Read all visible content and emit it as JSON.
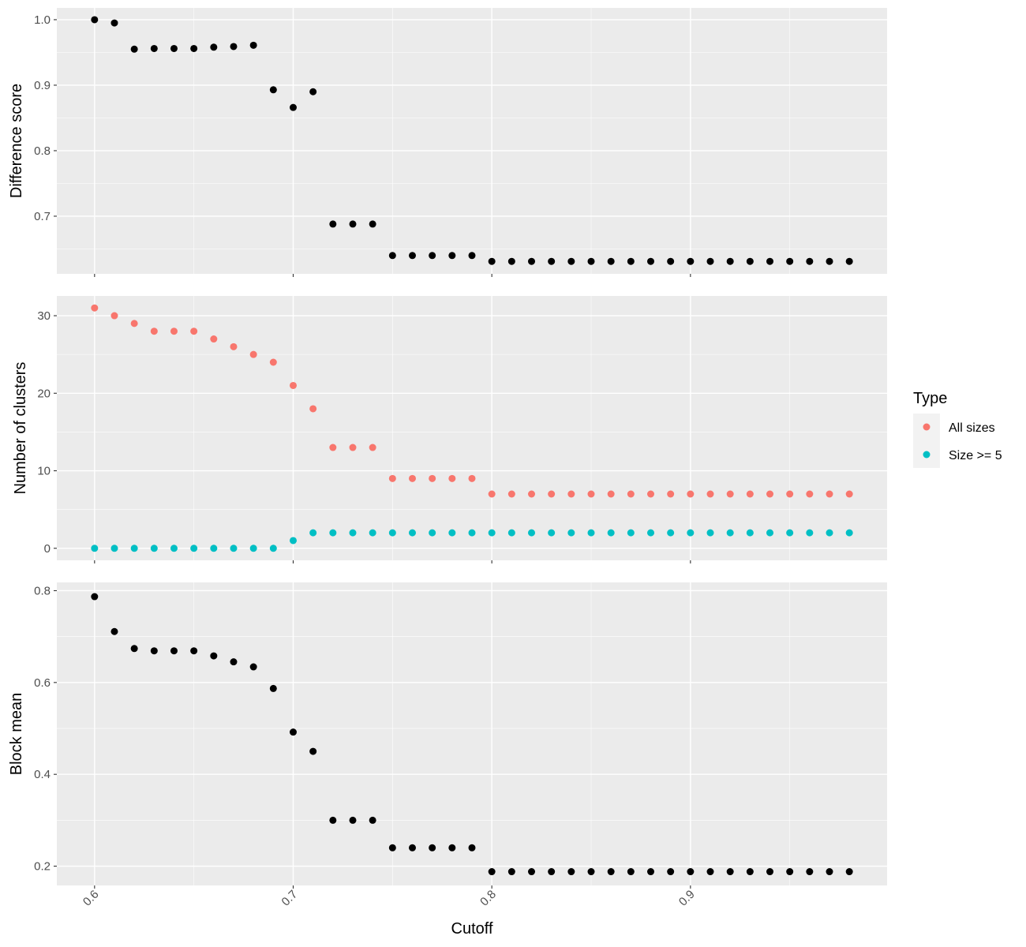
{
  "chart_data": [
    {
      "type": "scatter",
      "ylabel": "Difference score",
      "ylim": [
        0.612,
        1.018
      ],
      "yticks": [
        0.7,
        0.8,
        0.9,
        1.0
      ],
      "ytick_labels": [
        "0.7",
        "0.8",
        "0.9",
        "1.0"
      ],
      "series": [
        {
          "x": [
            0.6,
            0.61,
            0.62,
            0.63,
            0.64,
            0.65,
            0.66,
            0.67,
            0.68,
            0.69,
            0.7,
            0.71,
            0.72,
            0.73,
            0.74,
            0.75,
            0.76,
            0.77,
            0.78,
            0.79,
            0.8,
            0.81,
            0.82,
            0.83,
            0.84,
            0.85,
            0.86,
            0.87,
            0.88,
            0.89,
            0.9,
            0.91,
            0.92,
            0.93,
            0.94,
            0.95,
            0.96,
            0.97,
            0.98
          ],
          "values": [
            1.0,
            0.995,
            0.955,
            0.956,
            0.956,
            0.956,
            0.958,
            0.959,
            0.961,
            0.893,
            0.866,
            0.89,
            0.688,
            0.688,
            0.688,
            0.64,
            0.64,
            0.64,
            0.64,
            0.64,
            0.631,
            0.631,
            0.631,
            0.631,
            0.631,
            0.631,
            0.631,
            0.631,
            0.631,
            0.631,
            0.631,
            0.631,
            0.631,
            0.631,
            0.631,
            0.631,
            0.631,
            0.631,
            0.631
          ]
        }
      ]
    },
    {
      "type": "scatter",
      "ylabel": "Number of clusters",
      "ylim": [
        -1.55,
        32.55
      ],
      "yticks": [
        0,
        10,
        20,
        30
      ],
      "ytick_labels": [
        "0",
        "10",
        "20",
        "30"
      ],
      "legend_title": "Type",
      "legend_position": "right",
      "series": [
        {
          "name": "All sizes",
          "color": "#F8766D",
          "x": [
            0.6,
            0.61,
            0.62,
            0.63,
            0.64,
            0.65,
            0.66,
            0.67,
            0.68,
            0.69,
            0.7,
            0.71,
            0.72,
            0.73,
            0.74,
            0.75,
            0.76,
            0.77,
            0.78,
            0.79,
            0.8,
            0.81,
            0.82,
            0.83,
            0.84,
            0.85,
            0.86,
            0.87,
            0.88,
            0.89,
            0.9,
            0.91,
            0.92,
            0.93,
            0.94,
            0.95,
            0.96,
            0.97,
            0.98
          ],
          "values": [
            31,
            30,
            29,
            28,
            28,
            28,
            27,
            26,
            25,
            24,
            21,
            18,
            13,
            13,
            13,
            9,
            9,
            9,
            9,
            9,
            7,
            7,
            7,
            7,
            7,
            7,
            7,
            7,
            7,
            7,
            7,
            7,
            7,
            7,
            7,
            7,
            7,
            7,
            7
          ]
        },
        {
          "name": "Size >= 5",
          "color": "#00BFC4",
          "x": [
            0.6,
            0.61,
            0.62,
            0.63,
            0.64,
            0.65,
            0.66,
            0.67,
            0.68,
            0.69,
            0.7,
            0.71,
            0.72,
            0.73,
            0.74,
            0.75,
            0.76,
            0.77,
            0.78,
            0.79,
            0.8,
            0.81,
            0.82,
            0.83,
            0.84,
            0.85,
            0.86,
            0.87,
            0.88,
            0.89,
            0.9,
            0.91,
            0.92,
            0.93,
            0.94,
            0.95,
            0.96,
            0.97,
            0.98
          ],
          "values": [
            0,
            0,
            0,
            0,
            0,
            0,
            0,
            0,
            0,
            0,
            1,
            2,
            2,
            2,
            2,
            2,
            2,
            2,
            2,
            2,
            2,
            2,
            2,
            2,
            2,
            2,
            2,
            2,
            2,
            2,
            2,
            2,
            2,
            2,
            2,
            2,
            2,
            2,
            2
          ]
        }
      ]
    },
    {
      "type": "scatter",
      "ylabel": "Block mean",
      "xlabel": "Cutoff",
      "ylim": [
        0.158,
        0.818
      ],
      "yticks": [
        0.2,
        0.4,
        0.6,
        0.8
      ],
      "ytick_labels": [
        "0.2",
        "0.4",
        "0.6",
        "0.8"
      ],
      "series": [
        {
          "x": [
            0.6,
            0.61,
            0.62,
            0.63,
            0.64,
            0.65,
            0.66,
            0.67,
            0.68,
            0.69,
            0.7,
            0.71,
            0.72,
            0.73,
            0.74,
            0.75,
            0.76,
            0.77,
            0.78,
            0.79,
            0.8,
            0.81,
            0.82,
            0.83,
            0.84,
            0.85,
            0.86,
            0.87,
            0.88,
            0.89,
            0.9,
            0.91,
            0.92,
            0.93,
            0.94,
            0.95,
            0.96,
            0.97,
            0.98
          ],
          "values": [
            0.787,
            0.711,
            0.674,
            0.669,
            0.669,
            0.669,
            0.658,
            0.645,
            0.634,
            0.587,
            0.492,
            0.45,
            0.3,
            0.3,
            0.3,
            0.24,
            0.24,
            0.24,
            0.24,
            0.24,
            0.188,
            0.188,
            0.188,
            0.188,
            0.188,
            0.188,
            0.188,
            0.188,
            0.188,
            0.188,
            0.188,
            0.188,
            0.188,
            0.188,
            0.188,
            0.188,
            0.188,
            0.188,
            0.188
          ]
        }
      ]
    }
  ],
  "x_axis": {
    "label": "Cutoff",
    "xlim": [
      0.581,
      0.999
    ],
    "ticks": [
      0.6,
      0.7,
      0.8,
      0.9
    ],
    "tick_labels": [
      "0.6",
      "0.7",
      "0.8",
      "0.9"
    ]
  },
  "legend": {
    "title": "Type",
    "items": [
      {
        "label": "All sizes",
        "color": "#F8766D"
      },
      {
        "label": "Size >= 5",
        "color": "#00BFC4"
      }
    ]
  },
  "colors": {
    "panel_background": "#EBEBEB",
    "grid_major": "#FFFFFF",
    "point_default": "#000000"
  }
}
